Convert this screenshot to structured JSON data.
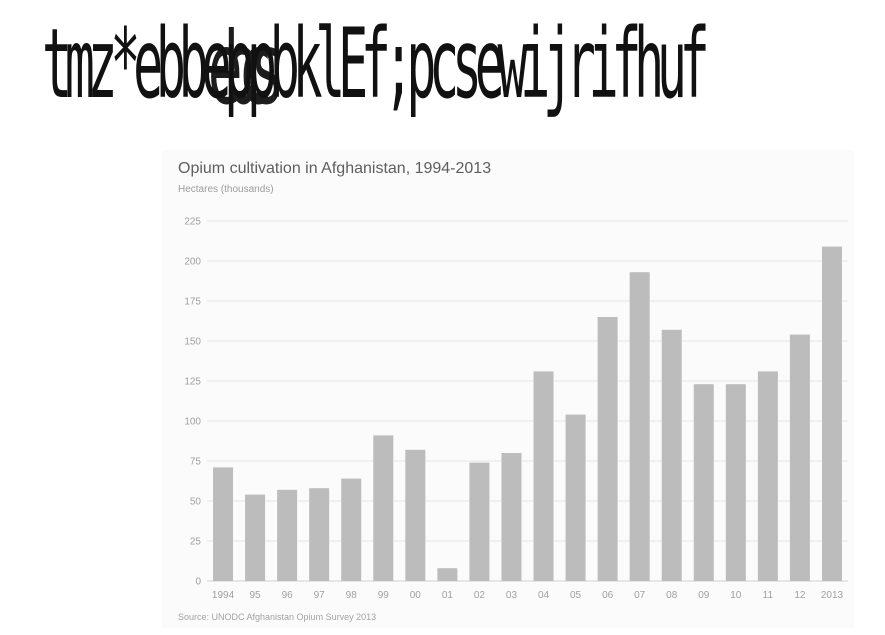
{
  "header": {
    "text": "tmz*ebbeppbklEf;pcsewijrifhuf",
    "overlay": "ebcs"
  },
  "chart_data": {
    "type": "bar",
    "title": "Opium cultivation in Afghanistan, 1994-2013",
    "subtitle": "Hectares (thousands)",
    "source": "Source: UNODC Afghanistan Opium Survey 2013",
    "categories": [
      "1994",
      "95",
      "96",
      "97",
      "98",
      "99",
      "00",
      "01",
      "02",
      "03",
      "04",
      "05",
      "06",
      "07",
      "08",
      "09",
      "10",
      "11",
      "12",
      "2013"
    ],
    "values": [
      71,
      54,
      57,
      58,
      64,
      91,
      82,
      8,
      74,
      80,
      131,
      104,
      165,
      193,
      157,
      123,
      123,
      131,
      154,
      209
    ],
    "ylim": [
      0,
      225
    ],
    "yticks": [
      0,
      25,
      50,
      75,
      100,
      125,
      150,
      175,
      200,
      225
    ],
    "grid": true,
    "colors": {
      "bar": "#bcbcbc",
      "grid": "#e6e6e6",
      "axis": "#d0d0d0"
    }
  }
}
